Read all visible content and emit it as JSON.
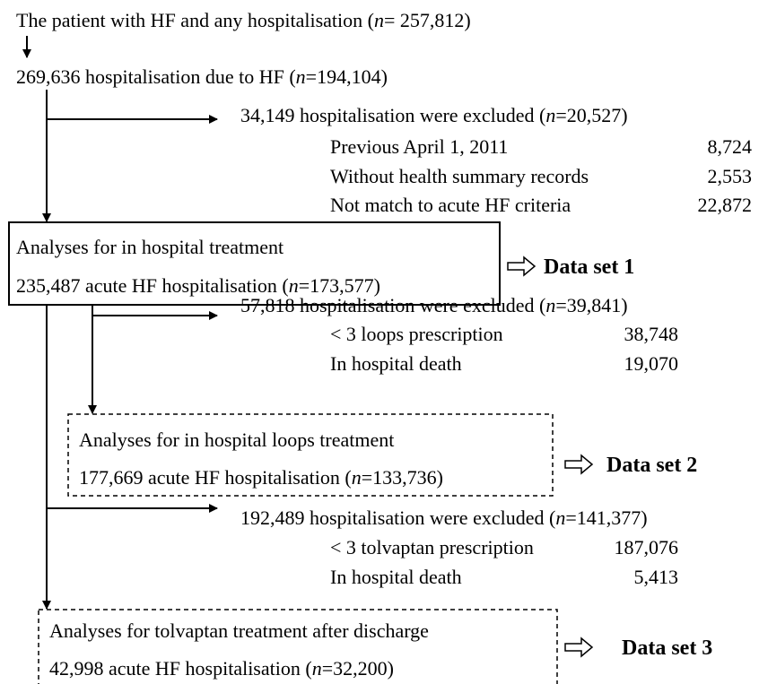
{
  "steps": [
    {
      "segments": [
        "The patient with HF and any hospitalisation (",
        "n",
        "= 257,812)"
      ]
    },
    {
      "segments": [
        "269,636 hospitalisation due to HF (",
        "n",
        "=194,104)"
      ]
    }
  ],
  "exclusions": [
    {
      "title": [
        "34,149 hospitalisation were excluded (",
        "n",
        "=20,527)"
      ],
      "rows": [
        {
          "label": "Previous April 1, 2011",
          "value": "8,724"
        },
        {
          "label": "Without health summary records",
          "value": "2,553"
        },
        {
          "label": "Not match to acute HF criteria",
          "value": "22,872"
        }
      ]
    },
    {
      "title": [
        "57,818 hospitalisation were excluded (",
        "n",
        "=39,841)"
      ],
      "rows": [
        {
          "label": "< 3 loops prescription",
          "value": "38,748"
        },
        {
          "label": "In hospital death",
          "value": "19,070"
        }
      ]
    },
    {
      "title": [
        "192,489 hospitalisation were excluded (",
        "n",
        "=141,377)"
      ],
      "rows": [
        {
          "label": "< 3 tolvaptan prescription",
          "value": "187,076"
        },
        {
          "label": "In hospital death",
          "value": "5,413"
        }
      ]
    }
  ],
  "boxes": [
    {
      "title": "Analyses for in hospital treatment",
      "count": [
        "235,487 acute HF hospitalisation (",
        "n",
        "=173,577)"
      ],
      "dataset": "Data set 1"
    },
    {
      "title": "Analyses for in hospital loops treatment",
      "count": [
        "177,669 acute HF hospitalisation (",
        "n",
        "=133,736)"
      ],
      "dataset": "Data set 2"
    },
    {
      "title": "Analyses for tolvaptan treatment after discharge",
      "count": [
        "42,998 acute HF hospitalisation (",
        "n",
        "=32,200)"
      ],
      "dataset": "Data set 3"
    }
  ]
}
